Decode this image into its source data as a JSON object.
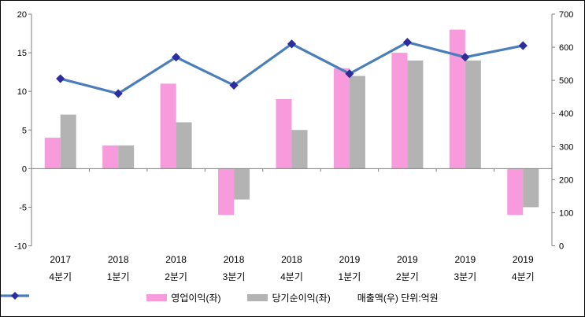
{
  "chart_data": {
    "type": "bar",
    "subtype": "combo-bar-line",
    "title": "",
    "grid": false,
    "legend_position": "bottom",
    "categories": [
      [
        "2017",
        "4분기"
      ],
      [
        "2018",
        "1분기"
      ],
      [
        "2018",
        "2분기"
      ],
      [
        "2018",
        "3분기"
      ],
      [
        "2018",
        "4분기"
      ],
      [
        "2019",
        "1분기"
      ],
      [
        "2019",
        "2분기"
      ],
      [
        "2019",
        "3분기"
      ],
      [
        "2019",
        "4분기"
      ]
    ],
    "series": [
      {
        "name": "영업이익(좌)",
        "type": "bar",
        "axis": "left",
        "color": "#f79bdc",
        "values": [
          4,
          3,
          11,
          -6,
          9,
          13,
          15,
          18,
          -6
        ]
      },
      {
        "name": "당기순이익(좌)",
        "type": "bar",
        "axis": "left",
        "color": "#b3b3b3",
        "values": [
          7,
          3,
          6,
          -4,
          5,
          12,
          14,
          14,
          -5
        ]
      },
      {
        "name": "매출액(우) 단위:억원",
        "type": "line",
        "axis": "right",
        "color": "#4a7ebb",
        "marker_color": "#2d2d9e",
        "values": [
          505,
          460,
          570,
          485,
          610,
          520,
          615,
          570,
          605
        ]
      }
    ],
    "left_axis": {
      "min": -10,
      "max": 20,
      "ticks": [
        20,
        15,
        10,
        5,
        0,
        -5,
        -10
      ]
    },
    "right_axis": {
      "min": 0,
      "max": 700,
      "ticks": [
        700,
        600,
        500,
        400,
        300,
        200,
        100,
        0
      ]
    },
    "colors": {
      "axis": "#808080",
      "tick_text": "#000000",
      "background": "#ffffff",
      "frame_border": "#000000"
    }
  }
}
